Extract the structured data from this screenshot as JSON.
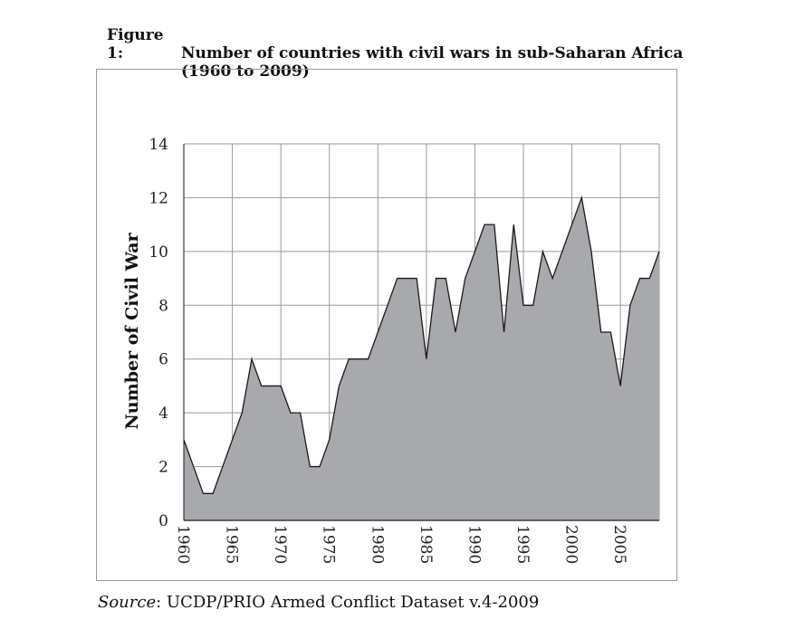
{
  "figure": {
    "label": "Figure 1:",
    "title_line1": "Number of countries with civil wars in sub-Saharan Africa",
    "title_line2": "(1960 to 2009)"
  },
  "source": {
    "label": "Source",
    "text": ": UCDP/PRIO Armed Conflict Dataset v.4-2009"
  },
  "colors": {
    "fill": "#a8a9ad",
    "stroke": "#1a1a1a",
    "grid": "#9a9a9a"
  },
  "chart_data": {
    "type": "area",
    "title": "Number of countries with civil wars in sub-Saharan Africa (1960 to 2009)",
    "xlabel": "",
    "ylabel": "Number of Civil War",
    "xlim": [
      1960,
      2009
    ],
    "ylim": [
      0,
      14
    ],
    "grid": true,
    "x_ticks": [
      1960,
      1965,
      1970,
      1975,
      1980,
      1985,
      1990,
      1995,
      2000,
      2005
    ],
    "y_ticks": [
      0,
      2,
      4,
      6,
      8,
      10,
      12,
      14
    ],
    "series": [
      {
        "x": [
          1960,
          1961,
          1962,
          1963,
          1964,
          1965,
          1966,
          1967,
          1968,
          1969,
          1970,
          1971,
          1972,
          1973,
          1974,
          1975,
          1976,
          1977,
          1978,
          1979,
          1980,
          1981,
          1982,
          1983,
          1984,
          1985,
          1986,
          1987,
          1988,
          1989,
          1990,
          1991,
          1992,
          1993,
          1994,
          1995,
          1996,
          1997,
          1998,
          1999,
          2000,
          2001,
          2002,
          2003,
          2004,
          2005,
          2006,
          2007,
          2008,
          2009
        ],
        "values": [
          3,
          2,
          1,
          1,
          2,
          3,
          4,
          6,
          5,
          5,
          5,
          4,
          4,
          2,
          2,
          3,
          5,
          6,
          6,
          6,
          7,
          8,
          9,
          9,
          9,
          6,
          9,
          9,
          7,
          9,
          10,
          11,
          11,
          7,
          11,
          8,
          8,
          10,
          9,
          10,
          11,
          12,
          10,
          7,
          7,
          5,
          8,
          9,
          9,
          10
        ]
      }
    ]
  }
}
